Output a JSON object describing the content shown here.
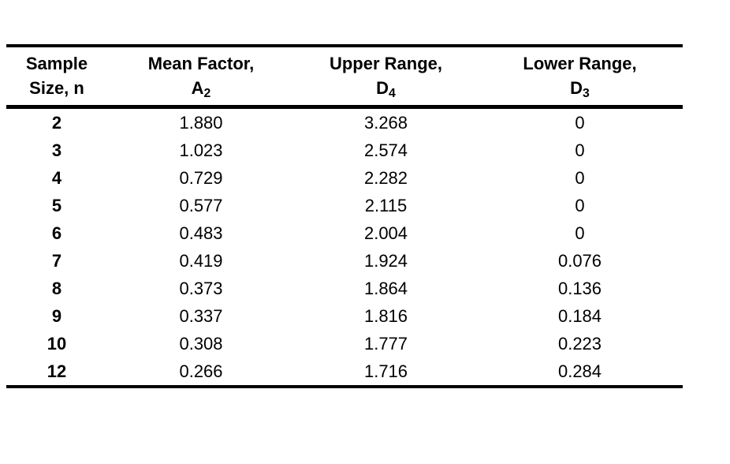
{
  "page": {
    "background": "#ffffff"
  },
  "chart_data": {
    "type": "table",
    "description": "Control chart factors table: mean factor A2, upper range D4 and lower range D3 for sample sizes n",
    "colors": {
      "text": "#000000",
      "rule": "#000000",
      "background": "#ffffff"
    },
    "columns": [
      {
        "id": "n",
        "header_line1": "Sample",
        "header_line2": "Size, n",
        "symbol": "",
        "subscript": ""
      },
      {
        "id": "a2",
        "header_line1": "Mean Factor,",
        "symbol": "A",
        "subscript": "2"
      },
      {
        "id": "d4",
        "header_line1": "Upper Range,",
        "symbol": "D",
        "subscript": "4"
      },
      {
        "id": "d3",
        "header_line1": "Lower Range,",
        "symbol": "D",
        "subscript": "3"
      }
    ],
    "rows": [
      {
        "n": "2",
        "a2": "1.880",
        "d4": "3.268",
        "d3": "0"
      },
      {
        "n": "3",
        "a2": "1.023",
        "d4": "2.574",
        "d3": "0"
      },
      {
        "n": "4",
        "a2": "0.729",
        "d4": "2.282",
        "d3": "0"
      },
      {
        "n": "5",
        "a2": "0.577",
        "d4": "2.115",
        "d3": "0"
      },
      {
        "n": "6",
        "a2": "0.483",
        "d4": "2.004",
        "d3": "0"
      },
      {
        "n": "7",
        "a2": "0.419",
        "d4": "1.924",
        "d3": "0.076"
      },
      {
        "n": "8",
        "a2": "0.373",
        "d4": "1.864",
        "d3": "0.136"
      },
      {
        "n": "9",
        "a2": "0.337",
        "d4": "1.816",
        "d3": "0.184"
      },
      {
        "n": "10",
        "a2": "0.308",
        "d4": "1.777",
        "d3": "0.223"
      },
      {
        "n": "12",
        "a2": "0.266",
        "d4": "1.716",
        "d3": "0.284"
      }
    ]
  }
}
